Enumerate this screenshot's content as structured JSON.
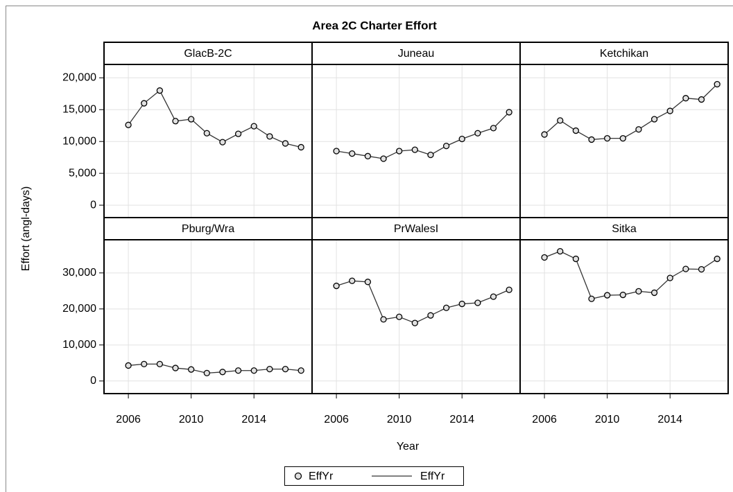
{
  "chart_data": {
    "type": "line",
    "title": "Area 2C Charter Effort",
    "x_label": "Year",
    "y_label": "Effort (angl-days)",
    "x": [
      2006,
      2007,
      2008,
      2009,
      2010,
      2011,
      2012,
      2013,
      2014,
      2015,
      2016,
      2017
    ],
    "xlim": [
      2004.45,
      2017.7
    ],
    "xticks": [
      2006,
      2010,
      2014
    ],
    "grid": true,
    "marker_color": "#e0e0e0",
    "line_color": "#333333",
    "legend": [
      "EffYr",
      "EffYr"
    ],
    "rows": [
      {
        "ylim": [
          -1950,
          22100
        ],
        "yticks": [
          0,
          {
            "value": 5000,
            "label": "5,000"
          },
          {
            "value": 10000,
            "label": "10,000"
          },
          {
            "value": 15000,
            "label": "15,000"
          },
          {
            "value": 20000,
            "label": "20,000"
          }
        ],
        "panels": [
          {
            "name": "GlacB-2C",
            "values": [
              12600,
              16000,
              18000,
              13200,
              13500,
              11300,
              9900,
              11200,
              12400,
              10800,
              9700,
              9100
            ]
          },
          {
            "name": "Juneau",
            "values": [
              8500,
              8100,
              7700,
              7300,
              8500,
              8700,
              7900,
              9300,
              10400,
              11300,
              12100,
              14600
            ]
          },
          {
            "name": "Ketchikan",
            "values": [
              11100,
              13300,
              11700,
              10300,
              10500,
              10500,
              11900,
              13500,
              14800,
              16800,
              16600,
              19000
            ]
          }
        ]
      },
      {
        "ylim": [
          -3500,
          39200
        ],
        "yticks": [
          0,
          {
            "value": 10000,
            "label": "10,000"
          },
          {
            "value": 20000,
            "label": "20,000"
          },
          {
            "value": 30000,
            "label": "30,000"
          }
        ],
        "panels": [
          {
            "name": "Pburg/Wra",
            "values": [
              4300,
              4700,
              4700,
              3600,
              3200,
              2200,
              2500,
              2900,
              2900,
              3300,
              3300,
              2900
            ]
          },
          {
            "name": "PrWalesI",
            "values": [
              26400,
              27800,
              27500,
              17100,
              17800,
              16100,
              18200,
              20300,
              21400,
              21700,
              23400,
              25300
            ]
          },
          {
            "name": "Sitka",
            "values": [
              34300,
              36000,
              33900,
              22800,
              23800,
              23900,
              24900,
              24500,
              28600,
              31100,
              31000,
              33900
            ]
          }
        ]
      }
    ]
  }
}
